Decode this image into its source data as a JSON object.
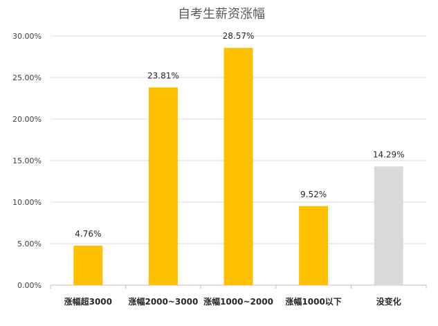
{
  "chart_data": {
    "type": "bar",
    "title": "自考生薪资涨幅",
    "categories": [
      "涨幅超3000",
      "涨幅2000~3000",
      "涨幅1000~2000",
      "涨幅1000以下",
      "没变化"
    ],
    "values": [
      4.76,
      23.81,
      28.57,
      9.52,
      14.29
    ],
    "data_labels": [
      "4.76%",
      "23.81%",
      "28.57%",
      "9.52%",
      "14.29%"
    ],
    "ylim": [
      0,
      30
    ],
    "yticks": [
      0,
      5,
      10,
      15,
      20,
      25,
      30
    ],
    "ytick_labels": [
      "0.00%",
      "5.00%",
      "10.00%",
      "15.00%",
      "20.00%",
      "25.00%",
      "30.00%"
    ],
    "xlabel": "",
    "ylabel": "",
    "grid": true,
    "colors": {
      "bar": "#ffc000",
      "bar_last": "#d9d9d9",
      "grid": "#d9d9d9",
      "axis": "#bfbfbf"
    }
  }
}
